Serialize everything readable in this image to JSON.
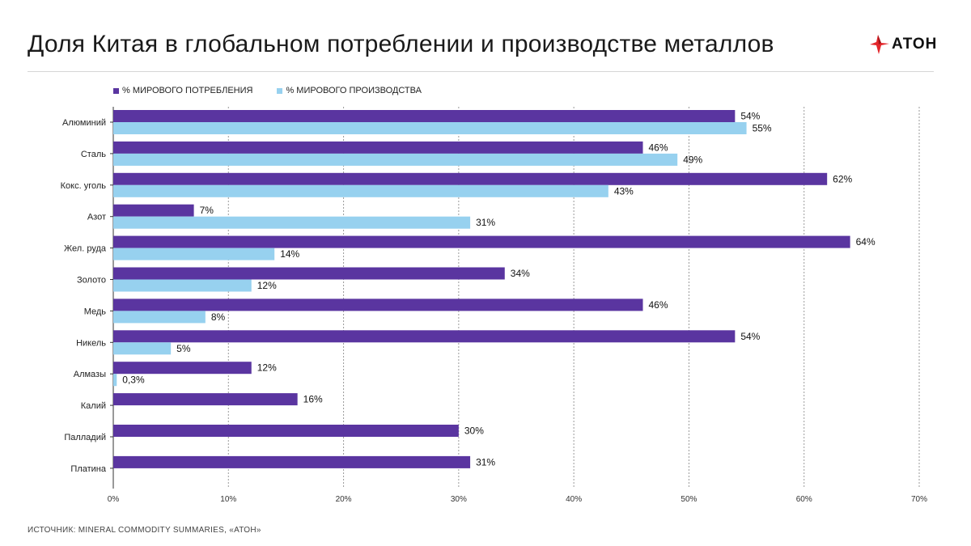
{
  "title": "Доля Китая в глобальном потреблении и производстве металлов",
  "logo_text": "АТОН",
  "source": "ИСТОЧНИК: MINERAL COMMODITY SUMMARIES, «АТОН»",
  "colors": {
    "consumption": "#5a35a0",
    "production": "#97d1ef",
    "accent": "#e3262b",
    "grid": "#9a9a9a"
  },
  "chart_data": {
    "type": "bar",
    "orientation": "horizontal",
    "categories": [
      "Алюминий",
      "Сталь",
      "Кокс. уголь",
      "Азот",
      "Жел. руда",
      "Золото",
      "Медь",
      "Никель",
      "Алмазы",
      "Калий",
      "Палладий",
      "Платина"
    ],
    "series": [
      {
        "name": "% МИРОВОГО ПОТРЕБЛЕНИЯ",
        "values": [
          54,
          46,
          62,
          7,
          64,
          34,
          46,
          54,
          12,
          16,
          30,
          31
        ],
        "labels": [
          "54%",
          "46%",
          "62%",
          "7%",
          "64%",
          "34%",
          "46%",
          "54%",
          "12%",
          "16%",
          "30%",
          "31%"
        ]
      },
      {
        "name": "% МИРОВОГО ПРОИЗВОДСТВА",
        "values": [
          55,
          49,
          43,
          31,
          14,
          12,
          8,
          5,
          0.3,
          null,
          null,
          null
        ],
        "labels": [
          "55%",
          "49%",
          "43%",
          "31%",
          "14%",
          "12%",
          "8%",
          "5%",
          "0,3%",
          null,
          null,
          null
        ]
      }
    ],
    "xlim": [
      0,
      70
    ],
    "xticks": [
      0,
      10,
      20,
      30,
      40,
      50,
      60,
      70
    ],
    "xtick_labels": [
      "0%",
      "10%",
      "20%",
      "30%",
      "40%",
      "50%",
      "60%",
      "70%"
    ],
    "grid": true,
    "legend": "top-left"
  }
}
